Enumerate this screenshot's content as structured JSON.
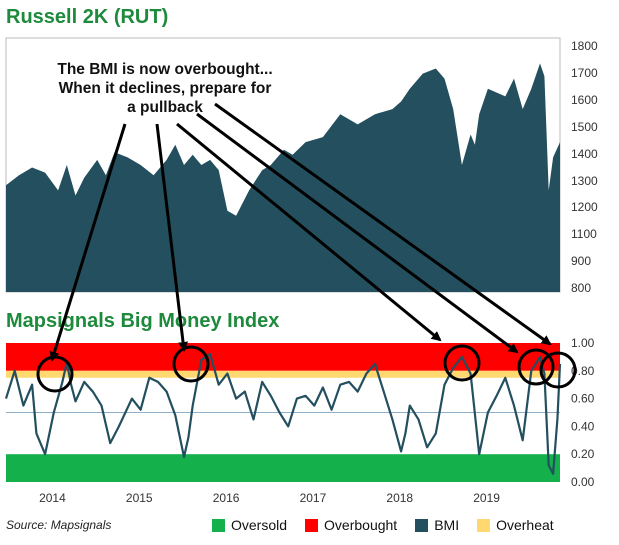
{
  "titles": {
    "top": "Russell 2K (RUT)",
    "bottom": "Mapsignals Big Money Index"
  },
  "annotation": {
    "line1": "The BMI is now overbought...",
    "line2": "When it declines, prepare for",
    "line3": "a pullback"
  },
  "source": "Source: Mapsignals",
  "legend": [
    {
      "label": "Oversold",
      "color": "#14b04b"
    },
    {
      "label": "Overbought",
      "color": "#ff0000"
    },
    {
      "label": "BMI",
      "color": "#234f5e"
    },
    {
      "label": "Overheat",
      "color": "#ffd870"
    }
  ],
  "chart_data": [
    {
      "type": "area",
      "title": "Russell 2K (RUT)",
      "series": [
        {
          "name": "",
          "color": "#234f5e"
        }
      ],
      "x_start": 2013.55,
      "x_end": 2019.93,
      "ylim": [
        800,
        1800
      ],
      "yticks": [
        "1800",
        "1700",
        "1600",
        "1500",
        "1400",
        "1300",
        "1200",
        "1100",
        "900",
        "800"
      ],
      "x": [
        2013.55,
        2013.7,
        2013.85,
        2014.0,
        2014.15,
        2014.25,
        2014.35,
        2014.45,
        2014.6,
        2014.7,
        2014.8,
        2014.95,
        2015.1,
        2015.25,
        2015.4,
        2015.5,
        2015.6,
        2015.7,
        2015.8,
        2015.9,
        2016.0,
        2016.1,
        2016.2,
        2016.35,
        2016.5,
        2016.6,
        2016.75,
        2016.85,
        2017.0,
        2017.2,
        2017.4,
        2017.6,
        2017.8,
        2018.0,
        2018.1,
        2018.2,
        2018.35,
        2018.5,
        2018.6,
        2018.7,
        2018.8,
        2018.9,
        2018.95,
        2019.0,
        2019.1,
        2019.3,
        2019.4,
        2019.5,
        2019.6,
        2019.7,
        2019.75,
        2019.8,
        2019.85,
        2019.93
      ],
      "y": [
        1220,
        1260,
        1290,
        1270,
        1200,
        1300,
        1180,
        1250,
        1320,
        1260,
        1350,
        1330,
        1300,
        1260,
        1320,
        1380,
        1300,
        1340,
        1300,
        1320,
        1280,
        1120,
        1100,
        1200,
        1280,
        1300,
        1360,
        1340,
        1390,
        1410,
        1500,
        1460,
        1500,
        1520,
        1550,
        1600,
        1660,
        1680,
        1640,
        1520,
        1300,
        1420,
        1380,
        1500,
        1600,
        1570,
        1640,
        1520,
        1600,
        1700,
        1650,
        1200,
        1330,
        1390
      ]
    },
    {
      "type": "line",
      "title": "Mapsignals Big Money Index",
      "series": [
        {
          "name": "BMI",
          "color": "#234f5e"
        }
      ],
      "ylim": [
        0,
        1
      ],
      "yticks": [
        "1.00",
        "0.80",
        "0.60",
        "0.40",
        "0.20",
        "0.00"
      ],
      "xticks": [
        "2014",
        "2015",
        "2016",
        "2017",
        "2018",
        "2019"
      ],
      "bands": [
        {
          "name": "Overbought",
          "from": 0.8,
          "to": 1.0,
          "color": "#ff0000"
        },
        {
          "name": "Overheat",
          "from": 0.75,
          "to": 0.8,
          "color": "#ffd870"
        },
        {
          "name": "Oversold",
          "from": 0.0,
          "to": 0.2,
          "color": "#14b04b"
        }
      ],
      "x_start": 2013.55,
      "x_end": 2019.93,
      "x": [
        2013.55,
        2013.65,
        2013.75,
        2013.85,
        2013.9,
        2014.0,
        2014.1,
        2014.2,
        2014.25,
        2014.3,
        2014.35,
        2014.45,
        2014.55,
        2014.65,
        2014.75,
        2014.85,
        2015.0,
        2015.1,
        2015.2,
        2015.3,
        2015.4,
        2015.5,
        2015.6,
        2015.65,
        2015.7,
        2015.8,
        2015.9,
        2016.0,
        2016.1,
        2016.2,
        2016.3,
        2016.4,
        2016.5,
        2016.6,
        2016.7,
        2016.8,
        2016.9,
        2017.0,
        2017.1,
        2017.2,
        2017.3,
        2017.4,
        2017.5,
        2017.6,
        2017.7,
        2017.8,
        2017.9,
        2018.0,
        2018.1,
        2018.15,
        2018.2,
        2018.3,
        2018.4,
        2018.5,
        2018.6,
        2018.7,
        2018.8,
        2018.9,
        2019.0,
        2019.1,
        2019.2,
        2019.3,
        2019.4,
        2019.5,
        2019.6,
        2019.7,
        2019.75,
        2019.8,
        2019.85,
        2019.9,
        2019.93
      ],
      "y": [
        0.6,
        0.8,
        0.55,
        0.7,
        0.35,
        0.2,
        0.5,
        0.72,
        0.86,
        0.7,
        0.58,
        0.72,
        0.65,
        0.55,
        0.28,
        0.4,
        0.6,
        0.52,
        0.75,
        0.72,
        0.65,
        0.48,
        0.18,
        0.32,
        0.55,
        0.88,
        0.92,
        0.7,
        0.78,
        0.6,
        0.65,
        0.45,
        0.72,
        0.62,
        0.5,
        0.4,
        0.6,
        0.62,
        0.55,
        0.68,
        0.52,
        0.7,
        0.72,
        0.65,
        0.78,
        0.85,
        0.65,
        0.45,
        0.22,
        0.35,
        0.55,
        0.45,
        0.25,
        0.35,
        0.7,
        0.82,
        0.9,
        0.78,
        0.2,
        0.5,
        0.62,
        0.75,
        0.55,
        0.3,
        0.8,
        0.9,
        0.78,
        0.12,
        0.06,
        0.45,
        0.85
      ]
    }
  ]
}
